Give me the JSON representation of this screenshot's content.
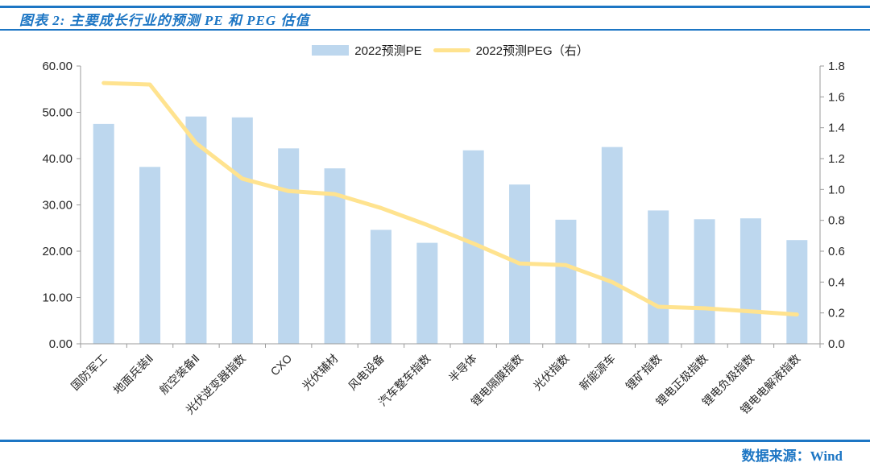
{
  "header": {
    "title": "图表 2:  主要成长行业的预测 PE 和 PEG 估值"
  },
  "footer": {
    "source_label": "数据来源：Wind"
  },
  "colors": {
    "accent_blue": "#1d76c4",
    "bar_fill": "#bdd7ee",
    "line_stroke": "#ffe38f",
    "axis_line": "#9b9b9b",
    "axis_text": "#262626"
  },
  "chart_data": {
    "type": "bar",
    "combo": "bar+line dual-axis",
    "title": "图表 2: 主要成长行业的预测 PE 和 PEG 估值",
    "categories": [
      "国防军工",
      "地面兵装Ⅱ",
      "航空装备Ⅱ",
      "光伏逆变器指数",
      "CXO",
      "光伏辅材",
      "风电设备",
      "汽车整车指数",
      "半导体",
      "锂电隔膜指数",
      "光伏指数",
      "新能源车",
      "锂矿指数",
      "锂电正极指数",
      "锂电负极指数",
      "锂电电解液指数"
    ],
    "series": [
      {
        "name": "2022预测PE",
        "type": "bar",
        "axis": "left",
        "values": [
          47.5,
          38.2,
          49.1,
          48.9,
          42.2,
          37.9,
          24.6,
          21.8,
          41.8,
          34.4,
          26.8,
          42.5,
          28.8,
          26.9,
          27.1,
          22.4
        ]
      },
      {
        "name": "2022预测PEG（右）",
        "type": "line",
        "axis": "right",
        "values": [
          1.69,
          1.68,
          1.3,
          1.07,
          0.99,
          0.97,
          0.88,
          0.77,
          0.65,
          0.52,
          0.51,
          0.4,
          0.24,
          0.23,
          0.21,
          0.19
        ]
      }
    ],
    "left_axis": {
      "min": 0,
      "max": 60,
      "step": 10,
      "tick_labels": [
        "0.00",
        "10.00",
        "20.00",
        "30.00",
        "40.00",
        "50.00",
        "60.00"
      ]
    },
    "right_axis": {
      "min": 0,
      "max": 1.8,
      "step": 0.2,
      "tick_labels": [
        "0.0",
        "0.2",
        "0.4",
        "0.6",
        "0.8",
        "1.0",
        "1.2",
        "1.4",
        "1.6",
        "1.8"
      ]
    },
    "grid": false,
    "legend_position": "top-center"
  }
}
